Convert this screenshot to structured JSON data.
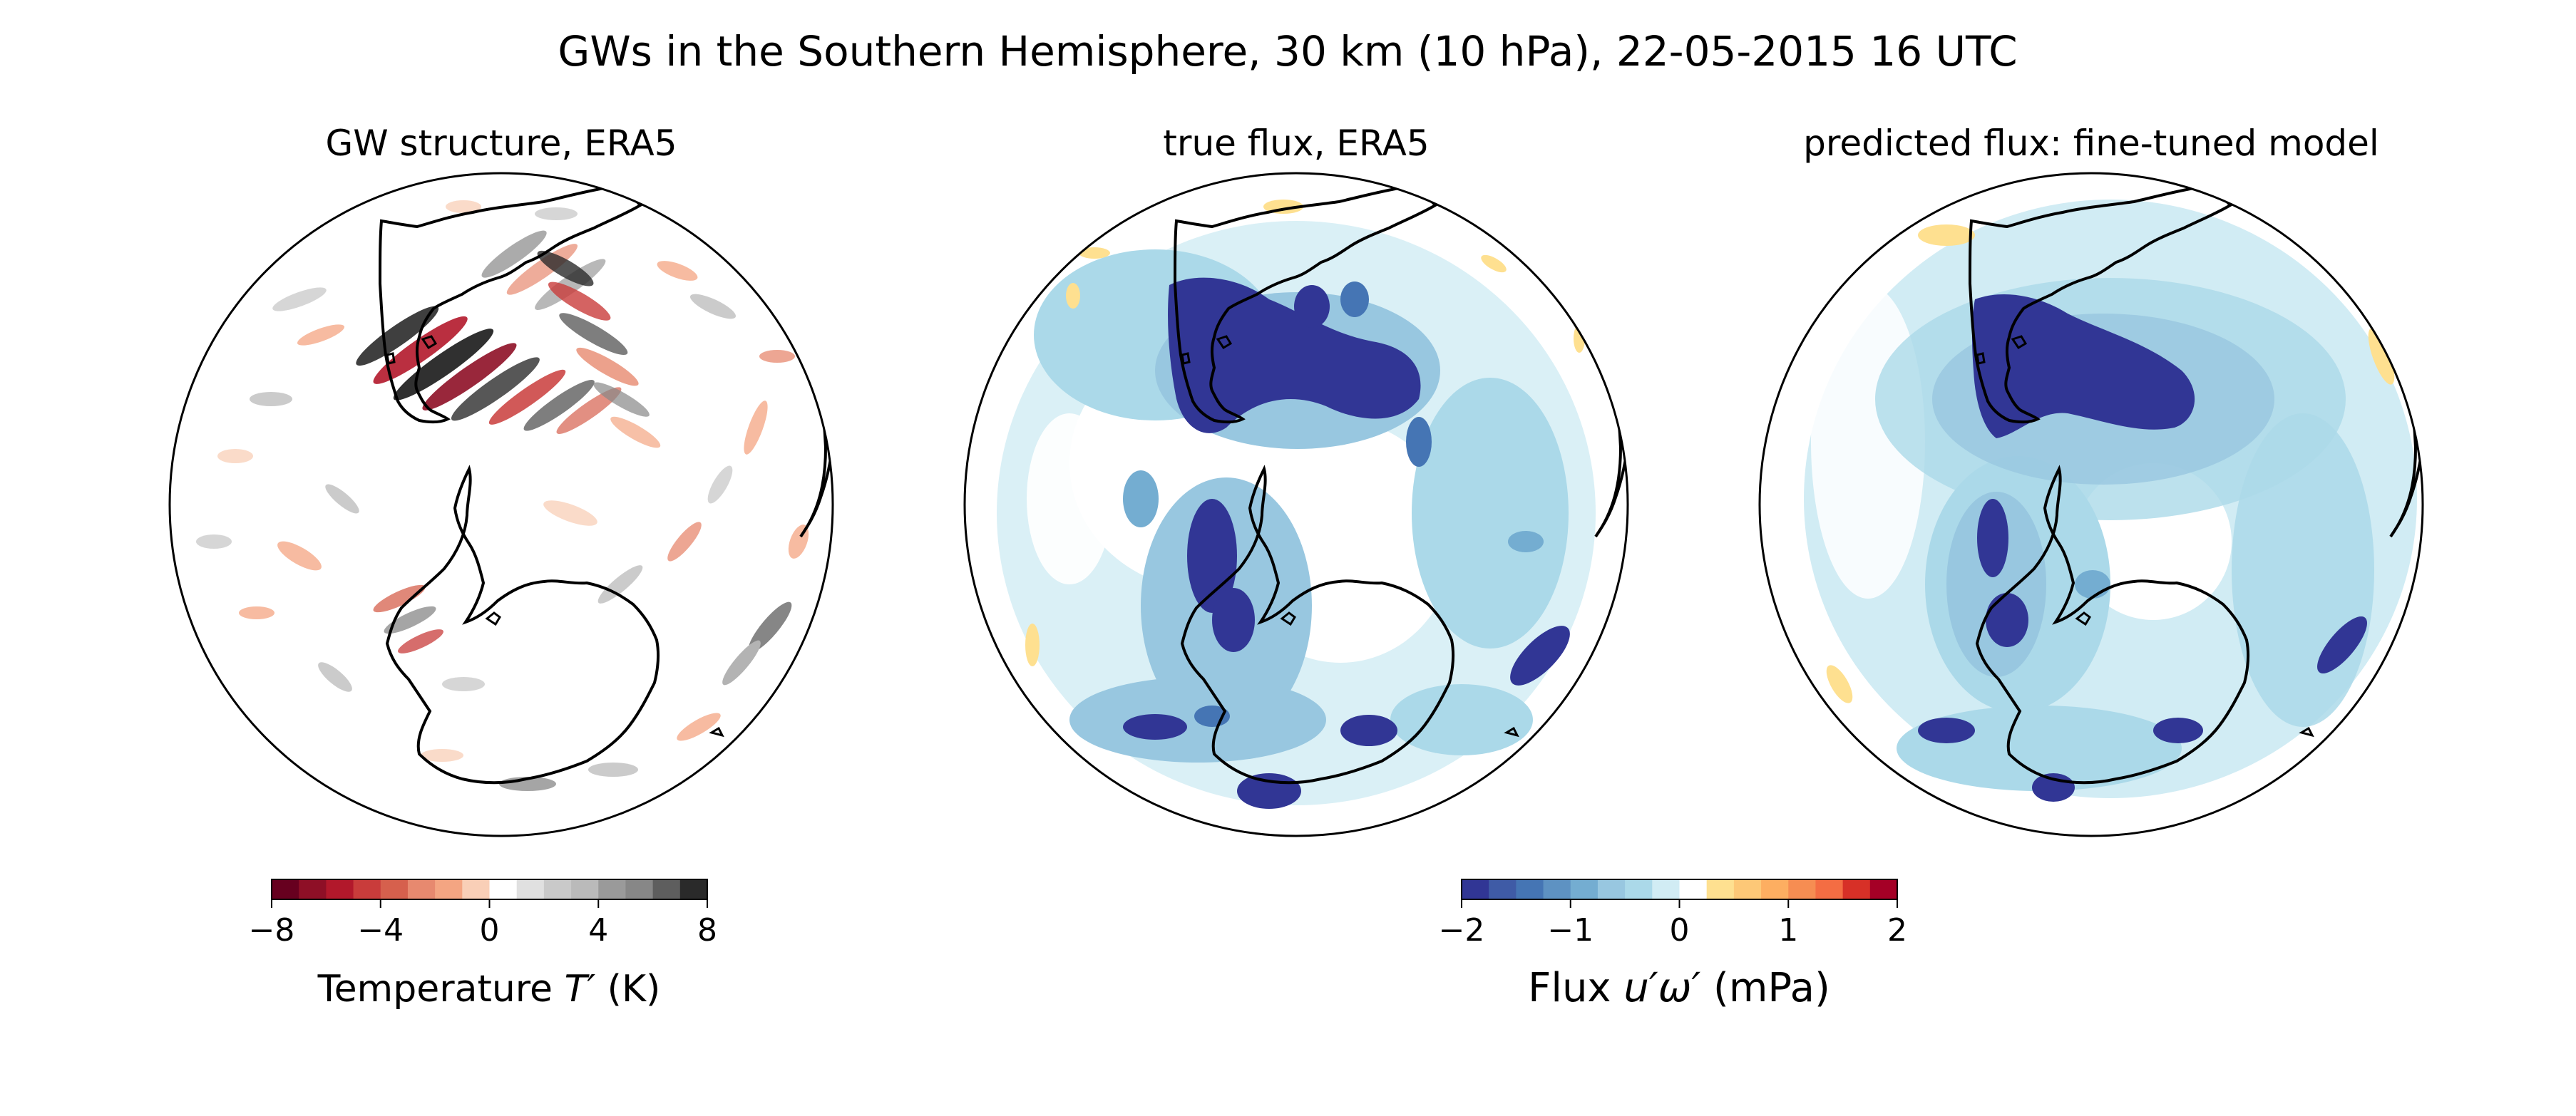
{
  "figure": {
    "title": "GWs in the Southern Hemisphere, 30 km (10 hPa), 22-05-2015 16 UTC"
  },
  "chart_data": [
    {
      "type": "heatmap",
      "title": "GW structure, ERA5",
      "projection": "orthographic, Southern Hemisphere",
      "colormap": "RdGy (red negative, white near zero, grey/black positive)",
      "colorbar": {
        "label_prefix": "Temperature ",
        "label_var": "T′",
        "label_suffix": " (K)",
        "range": [
          -8,
          8
        ],
        "ticks": [
          "−8",
          "−4",
          "0",
          "4",
          "8"
        ],
        "levels": 16,
        "colors": [
          "#67001f",
          "#8e0f26",
          "#b2182b",
          "#c93c3b",
          "#d6604d",
          "#e7896f",
          "#f4a582",
          "#f9cfb7",
          "#ffffff",
          "#e0e0e0",
          "#c9c9c9",
          "#bababa",
          "#9a9a9a",
          "#878787",
          "#5e5e5e",
          "#2a2a2a"
        ]
      }
    },
    {
      "type": "heatmap",
      "title": "true flux, ERA5",
      "projection": "orthographic, Southern Hemisphere",
      "colormap": "RdYlBu_r (blue negative, white near zero, yellow/red positive)"
    },
    {
      "type": "heatmap",
      "title": "predicted flux: fine-tuned model",
      "projection": "orthographic, Southern Hemisphere",
      "colormap": "RdYlBu_r (blue negative, white near zero, yellow/red positive)",
      "colorbar": {
        "label_prefix": "Flux ",
        "label_var": "u′ω′",
        "label_suffix": " (mPa)",
        "range": [
          -2,
          2
        ],
        "ticks": [
          "−2",
          "−1",
          "0",
          "1",
          "2"
        ],
        "levels": 16,
        "colors": [
          "#313695",
          "#3f5ba6",
          "#4575b4",
          "#5e92c2",
          "#74add1",
          "#98c7e0",
          "#abd9e9",
          "#d1ecf4",
          "#ffffff",
          "#fee090",
          "#fdc877",
          "#fdae61",
          "#f68d52",
          "#f46d43",
          "#d73027",
          "#a50026"
        ]
      }
    }
  ]
}
